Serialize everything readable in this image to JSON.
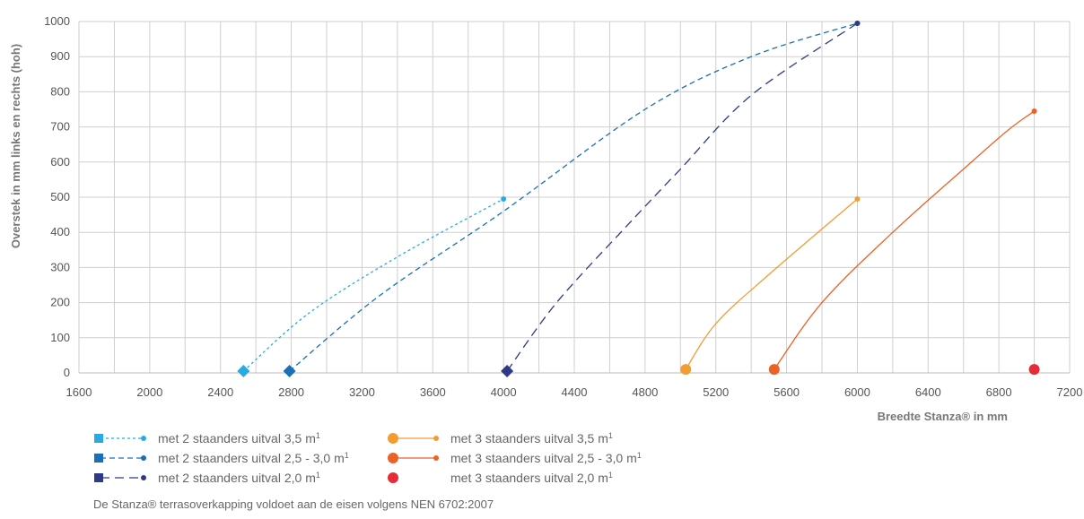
{
  "chart_data": {
    "type": "line",
    "title": "",
    "xlabel": "Breedte Stanza® in mm",
    "ylabel": "Overstek in mm links en rechts (hoh)",
    "xlim": [
      1600,
      7200
    ],
    "ylim": [
      0,
      1000
    ],
    "x_ticks": [
      "1600",
      "2000",
      "2400",
      "2800",
      "3200",
      "3600",
      "4000",
      "4400",
      "4800",
      "5200",
      "5600",
      "6000",
      "6400",
      "6800",
      "7200"
    ],
    "y_ticks": [
      "0",
      "100",
      "200",
      "300",
      "400",
      "500",
      "600",
      "700",
      "800",
      "900",
      "1000"
    ],
    "grid": true,
    "legend_position": "bottom-left",
    "series": [
      {
        "key": "s1",
        "label": "met 2 staanders uitval 3,5 m",
        "unit_sup": "1",
        "color": "#29abe2",
        "dash": "3,3",
        "start_marker": "diamond",
        "end_marker": "dot",
        "points": [
          [
            2530,
            5
          ],
          [
            2900,
            170
          ],
          [
            3400,
            330
          ],
          [
            4000,
            495
          ]
        ]
      },
      {
        "key": "s2",
        "label": "met 2 staanders uitval 2,5 - 3,0 m",
        "unit_sup": "1",
        "color": "#1b6fb5",
        "dash": "6,4",
        "start_marker": "diamond",
        "end_marker": "dot",
        "points": [
          [
            2790,
            5
          ],
          [
            3300,
            220
          ],
          [
            4000,
            460
          ],
          [
            4800,
            750
          ],
          [
            5400,
            900
          ],
          [
            6000,
            995
          ]
        ]
      },
      {
        "key": "s3",
        "label": "met 2 staanders uitval 2,0 m",
        "unit_sup": "1",
        "color": "#2e3a87",
        "dash": "10,6",
        "start_marker": "diamond",
        "end_marker": "dot",
        "points": [
          [
            4020,
            5
          ],
          [
            4300,
            200
          ],
          [
            4700,
            420
          ],
          [
            5000,
            580
          ],
          [
            5400,
            790
          ],
          [
            6000,
            995
          ]
        ]
      },
      {
        "key": "s4",
        "label": "met 3 staanders uitval 3,5 m",
        "unit_sup": "1",
        "color": "#f39c33",
        "dash": "",
        "start_marker": "circle",
        "end_marker": "dot",
        "points": [
          [
            5030,
            10
          ],
          [
            5200,
            140
          ],
          [
            5500,
            280
          ],
          [
            6000,
            495
          ]
        ]
      },
      {
        "key": "s5",
        "label": "met 3 staanders uitval 2,5 - 3,0 m",
        "unit_sup": "1",
        "color": "#eb6227",
        "dash": "",
        "start_marker": "circle",
        "end_marker": "dot",
        "points": [
          [
            5530,
            10
          ],
          [
            5800,
            200
          ],
          [
            6200,
            400
          ],
          [
            6600,
            580
          ],
          [
            6850,
            690
          ],
          [
            7000,
            745
          ]
        ]
      },
      {
        "key": "s6",
        "label": "met 3 staanders uitval 2,0 m",
        "unit_sup": "1",
        "color": "#e52d37",
        "dash": "",
        "start_marker": "circle",
        "end_marker": "none",
        "points": [
          [
            7000,
            10
          ]
        ]
      }
    ]
  },
  "footnote": "De Stanza® terrasoverkapping voldoet aan de eisen volgens NEN 6702:2007"
}
